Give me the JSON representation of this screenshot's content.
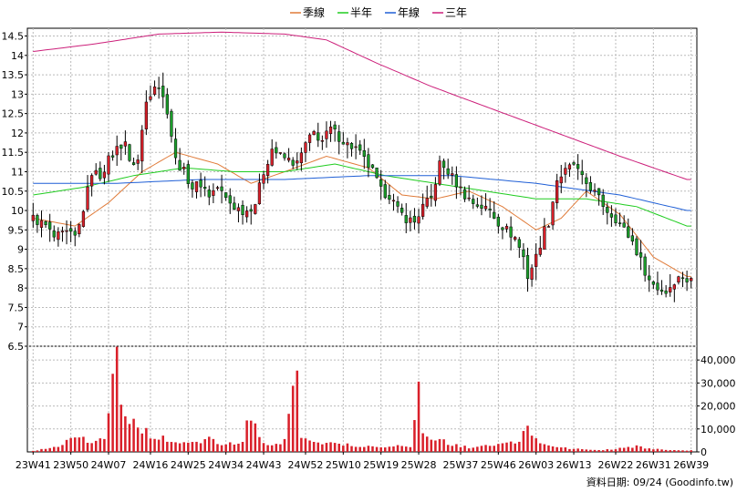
{
  "chart_data": {
    "type": "candlestick",
    "legend": {
      "placement": "top-center",
      "items": [
        {
          "label": "季線",
          "color": "#e07b39"
        },
        {
          "label": "半年",
          "color": "#1fcc1f"
        },
        {
          "label": "年線",
          "color": "#1f5fd6"
        },
        {
          "label": "三年",
          "color": "#cc1f7a"
        }
      ]
    },
    "price_axis": {
      "range": [
        6.5,
        14.7
      ],
      "ticks": [
        "6.5",
        "7",
        "7.5",
        "8",
        "8.5",
        "9",
        "9.5",
        "10",
        "10.5",
        "11",
        "11.5",
        "12",
        "12.5",
        "13",
        "13.5",
        "14",
        "14.5"
      ]
    },
    "volume_axis": {
      "range": [
        0,
        46000
      ],
      "ticks": [
        "0",
        "10,000",
        "20,000",
        "30,000",
        "40,000"
      ],
      "tick_values": [
        0,
        10000,
        20000,
        30000,
        40000
      ]
    },
    "x_axis": {
      "labels": [
        "23W41",
        "23W50",
        "24W07",
        "24W16",
        "24W25",
        "24W34",
        "24W43",
        "24W52",
        "25W10",
        "25W19",
        "25W28",
        "25W37",
        "25W46",
        "26W03",
        "26W13",
        "26W22",
        "26W31",
        "26W39"
      ],
      "week_count": 158
    },
    "close_anchors": [
      [
        0,
        9.8
      ],
      [
        3,
        9.6
      ],
      [
        5,
        9.3
      ],
      [
        8,
        9.4
      ],
      [
        10,
        9.3
      ],
      [
        11,
        9.6
      ],
      [
        13,
        10.5
      ],
      [
        14,
        11.0
      ],
      [
        16,
        10.9
      ],
      [
        18,
        11.3
      ],
      [
        20,
        11.6
      ],
      [
        22,
        11.8
      ],
      [
        23,
        11.2
      ],
      [
        25,
        11.3
      ],
      [
        27,
        12.8
      ],
      [
        29,
        13.3
      ],
      [
        30,
        13.2
      ],
      [
        32,
        12.6
      ],
      [
        34,
        11.3
      ],
      [
        36,
        11.0
      ],
      [
        38,
        10.6
      ],
      [
        40,
        10.7
      ],
      [
        42,
        10.4
      ],
      [
        44,
        10.6
      ],
      [
        46,
        10.3
      ],
      [
        48,
        10.1
      ],
      [
        50,
        10.0
      ],
      [
        51,
        10.0
      ],
      [
        53,
        10.2
      ],
      [
        55,
        11.0
      ],
      [
        57,
        11.6
      ],
      [
        59,
        11.4
      ],
      [
        61,
        11.3
      ],
      [
        63,
        11.2
      ],
      [
        65,
        11.7
      ],
      [
        67,
        12.0
      ],
      [
        69,
        11.8
      ],
      [
        71,
        12.1
      ],
      [
        73,
        11.9
      ],
      [
        75,
        11.7
      ],
      [
        77,
        11.6
      ],
      [
        79,
        11.3
      ],
      [
        81,
        11.0
      ],
      [
        83,
        10.5
      ],
      [
        85,
        10.4
      ],
      [
        87,
        10.0
      ],
      [
        89,
        9.8
      ],
      [
        91,
        9.7
      ],
      [
        93,
        10.1
      ],
      [
        95,
        10.3
      ],
      [
        97,
        11.2
      ],
      [
        99,
        11.0
      ],
      [
        101,
        10.7
      ],
      [
        103,
        10.4
      ],
      [
        105,
        10.2
      ],
      [
        107,
        10.1
      ],
      [
        109,
        10.0
      ],
      [
        111,
        9.7
      ],
      [
        113,
        9.5
      ],
      [
        115,
        9.3
      ],
      [
        117,
        8.8
      ],
      [
        118,
        8.3
      ],
      [
        120,
        8.8
      ],
      [
        122,
        9.5
      ],
      [
        123,
        9.7
      ],
      [
        125,
        10.8
      ],
      [
        127,
        11.0
      ],
      [
        129,
        11.2
      ],
      [
        131,
        10.8
      ],
      [
        133,
        10.6
      ],
      [
        135,
        10.3
      ],
      [
        137,
        10.0
      ],
      [
        139,
        9.8
      ],
      [
        141,
        9.5
      ],
      [
        143,
        9.2
      ],
      [
        145,
        8.7
      ],
      [
        147,
        8.2
      ],
      [
        149,
        8.0
      ],
      [
        151,
        7.9
      ],
      [
        153,
        8.2
      ],
      [
        155,
        8.3
      ],
      [
        156,
        8.2
      ]
    ],
    "quarter_anchors": [
      [
        0,
        9.8
      ],
      [
        10,
        9.6
      ],
      [
        18,
        10.2
      ],
      [
        26,
        11.0
      ],
      [
        34,
        11.5
      ],
      [
        44,
        11.2
      ],
      [
        52,
        10.7
      ],
      [
        60,
        11.0
      ],
      [
        70,
        11.4
      ],
      [
        80,
        11.1
      ],
      [
        88,
        10.4
      ],
      [
        96,
        10.3
      ],
      [
        104,
        10.5
      ],
      [
        112,
        10.1
      ],
      [
        120,
        9.5
      ],
      [
        126,
        9.8
      ],
      [
        132,
        10.5
      ],
      [
        140,
        9.9
      ],
      [
        148,
        8.8
      ],
      [
        156,
        8.3
      ]
    ],
    "halfyear_anchors": [
      [
        0,
        10.4
      ],
      [
        12,
        10.6
      ],
      [
        24,
        10.9
      ],
      [
        36,
        11.1
      ],
      [
        48,
        11.0
      ],
      [
        60,
        11.0
      ],
      [
        72,
        11.2
      ],
      [
        84,
        10.9
      ],
      [
        96,
        10.7
      ],
      [
        108,
        10.5
      ],
      [
        120,
        10.3
      ],
      [
        132,
        10.3
      ],
      [
        144,
        10.1
      ],
      [
        156,
        9.6
      ]
    ],
    "year_anchors": [
      [
        0,
        10.7
      ],
      [
        20,
        10.7
      ],
      [
        40,
        10.8
      ],
      [
        60,
        10.8
      ],
      [
        80,
        10.9
      ],
      [
        100,
        10.9
      ],
      [
        120,
        10.7
      ],
      [
        140,
        10.4
      ],
      [
        156,
        10.0
      ]
    ],
    "threeyear_anchors": [
      [
        0,
        14.1
      ],
      [
        15,
        14.3
      ],
      [
        30,
        14.55
      ],
      [
        45,
        14.6
      ],
      [
        60,
        14.55
      ],
      [
        70,
        14.4
      ],
      [
        82,
        13.8
      ],
      [
        95,
        13.2
      ],
      [
        110,
        12.6
      ],
      [
        125,
        12.0
      ],
      [
        140,
        11.4
      ],
      [
        156,
        10.8
      ]
    ],
    "volume_anchors": [
      [
        0,
        500
      ],
      [
        6,
        2500
      ],
      [
        10,
        8000
      ],
      [
        14,
        3500
      ],
      [
        17,
        6000
      ],
      [
        20,
        44000
      ],
      [
        21,
        22000
      ],
      [
        24,
        12000
      ],
      [
        26,
        9000
      ],
      [
        30,
        6500
      ],
      [
        34,
        4000
      ],
      [
        38,
        3500
      ],
      [
        42,
        5500
      ],
      [
        46,
        3000
      ],
      [
        50,
        4500
      ],
      [
        52,
        18000
      ],
      [
        54,
        6000
      ],
      [
        56,
        2500
      ],
      [
        60,
        4500
      ],
      [
        63,
        36000
      ],
      [
        64,
        8000
      ],
      [
        67,
        5000
      ],
      [
        70,
        3500
      ],
      [
        74,
        3500
      ],
      [
        78,
        2500
      ],
      [
        82,
        2000
      ],
      [
        86,
        3000
      ],
      [
        90,
        2000
      ],
      [
        92,
        25000
      ],
      [
        93,
        8000
      ],
      [
        96,
        6000
      ],
      [
        100,
        3000
      ],
      [
        104,
        2000
      ],
      [
        108,
        2500
      ],
      [
        112,
        3500
      ],
      [
        116,
        4000
      ],
      [
        118,
        12000
      ],
      [
        120,
        5000
      ],
      [
        124,
        2500
      ],
      [
        128,
        1500
      ],
      [
        132,
        1000
      ],
      [
        136,
        800
      ],
      [
        140,
        1500
      ],
      [
        144,
        2500
      ],
      [
        148,
        1200
      ],
      [
        152,
        800
      ],
      [
        156,
        600
      ]
    ],
    "footer": "資料日期: 09/24 (Goodinfo.tw)"
  }
}
